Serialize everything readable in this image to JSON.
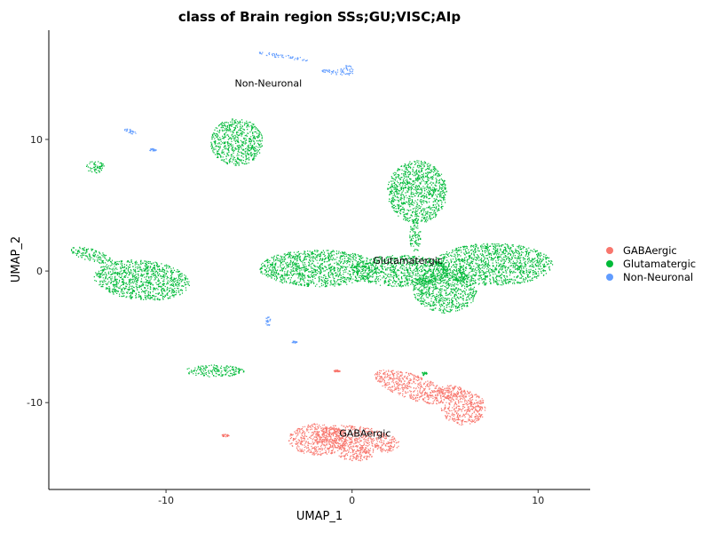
{
  "chart_data": {
    "type": "scatter",
    "title": "class of Brain region SSs;GU;VISC;AIp",
    "xlabel": "UMAP_1",
    "ylabel": "UMAP_2",
    "xlim": [
      -16.3,
      12.8
    ],
    "ylim": [
      -16.6,
      18.3
    ],
    "x_ticks": [
      -10,
      0,
      10
    ],
    "y_ticks": [
      -10,
      0,
      10
    ],
    "x_tick_labels": [
      "-10",
      "0",
      "10"
    ],
    "y_tick_labels": [
      "-10",
      "0",
      "10"
    ],
    "grid": false,
    "legend_position": "right",
    "series": [
      {
        "name": "GABAergic",
        "color": "#F8766D",
        "label_position": [
          0.7,
          -12.3
        ],
        "regions": [
          {
            "cx": 0.3,
            "cy": -12.8,
            "rx": 2.3,
            "ry": 1.0,
            "rot": -0.2
          },
          {
            "cx": -1.8,
            "cy": -12.8,
            "rx": 1.6,
            "ry": 1.2,
            "rot": 0
          },
          {
            "cx": 0.2,
            "cy": -14.0,
            "rx": 0.9,
            "ry": 0.45,
            "rot": 0
          },
          {
            "cx": 3.2,
            "cy": -8.8,
            "rx": 2.2,
            "ry": 0.9,
            "rot": -0.5
          },
          {
            "cx": 6.0,
            "cy": -10.4,
            "rx": 1.2,
            "ry": 1.3,
            "rot": 0
          },
          {
            "cx": 5.3,
            "cy": -9.2,
            "rx": 0.8,
            "ry": 0.5,
            "rot": 0
          },
          {
            "cx": -0.8,
            "cy": -7.6,
            "rx": 0.2,
            "ry": 0.08,
            "rot": 0
          },
          {
            "cx": -6.8,
            "cy": -12.5,
            "rx": 0.22,
            "ry": 0.1,
            "rot": 0
          }
        ]
      },
      {
        "name": "Glutamatergic",
        "color": "#00BA38",
        "label_position": [
          3.0,
          0.8
        ],
        "regions": [
          {
            "cx": -6.2,
            "cy": 9.8,
            "rx": 1.4,
            "ry": 1.8,
            "rot": 0
          },
          {
            "cx": -13.8,
            "cy": 7.9,
            "rx": 0.5,
            "ry": 0.45,
            "rot": 0
          },
          {
            "cx": -11.3,
            "cy": -0.7,
            "rx": 2.6,
            "ry": 1.5,
            "rot": -0.15
          },
          {
            "cx": -14.0,
            "cy": 1.2,
            "rx": 1.2,
            "ry": 0.45,
            "rot": -0.4
          },
          {
            "cx": 3.5,
            "cy": 6.0,
            "rx": 1.6,
            "ry": 2.4,
            "rot": 0
          },
          {
            "cx": 3.4,
            "cy": 2.7,
            "rx": 0.3,
            "ry": 1.3,
            "rot": 0
          },
          {
            "cx": -1.8,
            "cy": 0.2,
            "rx": 3.2,
            "ry": 1.4,
            "rot": 0
          },
          {
            "cx": 2.6,
            "cy": 0.0,
            "rx": 2.6,
            "ry": 1.2,
            "rot": 0
          },
          {
            "cx": 5.0,
            "cy": -1.5,
            "rx": 1.7,
            "ry": 1.7,
            "rot": 0
          },
          {
            "cx": 7.6,
            "cy": 0.5,
            "rx": 3.2,
            "ry": 1.6,
            "rot": 0
          },
          {
            "cx": -7.4,
            "cy": -7.6,
            "rx": 1.6,
            "ry": 0.45,
            "rot": 0
          },
          {
            "cx": 3.9,
            "cy": -7.8,
            "rx": 0.15,
            "ry": 0.15,
            "rot": 0
          }
        ]
      },
      {
        "name": "Non-Neuronal",
        "color": "#619CFF",
        "label_position": [
          -4.5,
          14.3
        ],
        "regions": [
          {
            "cx": -3.7,
            "cy": 16.3,
            "rx": 1.5,
            "ry": 0.15,
            "rot": -0.2
          },
          {
            "cx": -0.8,
            "cy": 15.1,
            "rx": 0.9,
            "ry": 0.18,
            "rot": -0.15
          },
          {
            "cx": -0.3,
            "cy": 15.3,
            "rx": 0.35,
            "ry": 0.35,
            "rot": 0
          },
          {
            "cx": -11.9,
            "cy": 10.6,
            "rx": 0.35,
            "ry": 0.15,
            "rot": -0.4
          },
          {
            "cx": -10.7,
            "cy": 9.2,
            "rx": 0.2,
            "ry": 0.1,
            "rot": 0
          },
          {
            "cx": -4.5,
            "cy": -3.8,
            "rx": 0.15,
            "ry": 0.35,
            "rot": 0
          },
          {
            "cx": -3.1,
            "cy": -5.4,
            "rx": 0.15,
            "ry": 0.08,
            "rot": 0
          }
        ]
      }
    ]
  }
}
